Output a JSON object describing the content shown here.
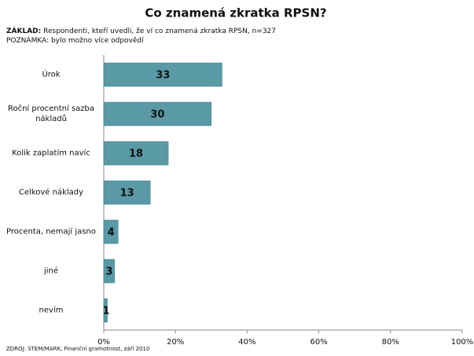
{
  "chart_data": {
    "type": "bar",
    "orientation": "horizontal",
    "title": "Co znamená zkratka RPSN?",
    "basis_label": "ZÁKLAD:",
    "basis": "Respondenti, kteří uvedli, že ví co znamená zkratka RPSN, n=327",
    "note": "POZNÁMKA: bylo možno více odpovědí",
    "source": "ZDROJ: STEM/MARK, Finanční gramotnost, září 2010",
    "categories": [
      "Úrok",
      "Roční procentní sazba nákladů",
      "Kolik zaplatím navíc",
      "Celkové náklady",
      "Procenta, nemají jasno",
      "jiné",
      "nevím"
    ],
    "values": [
      33,
      30,
      18,
      13,
      4,
      3,
      1
    ],
    "color": "#5a9aa6",
    "xlim": [
      0,
      100
    ],
    "xticks": [
      {
        "value": 0,
        "label": "0%"
      },
      {
        "value": 20,
        "label": "20%"
      },
      {
        "value": 40,
        "label": "40%"
      },
      {
        "value": 60,
        "label": "60%"
      },
      {
        "value": 80,
        "label": "80%"
      },
      {
        "value": 100,
        "label": "100%"
      }
    ]
  }
}
